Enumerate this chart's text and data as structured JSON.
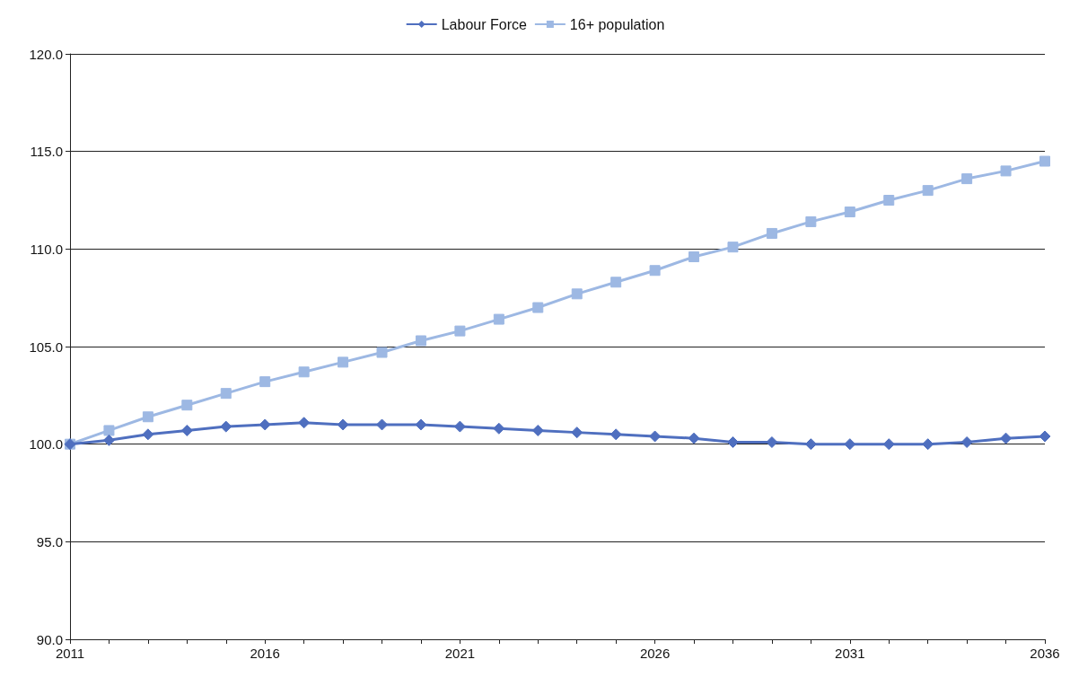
{
  "chart_data": {
    "type": "line",
    "x": [
      2011,
      2012,
      2013,
      2014,
      2015,
      2016,
      2017,
      2018,
      2019,
      2020,
      2021,
      2022,
      2023,
      2024,
      2025,
      2026,
      2027,
      2028,
      2029,
      2030,
      2031,
      2032,
      2033,
      2034,
      2035,
      2036
    ],
    "series": [
      {
        "name": "Labour Force",
        "color": "#4f6fbf",
        "marker": "diamond",
        "values": [
          100.0,
          100.2,
          100.5,
          100.7,
          100.9,
          101.0,
          101.1,
          101.0,
          101.0,
          101.0,
          100.9,
          100.8,
          100.7,
          100.6,
          100.5,
          100.4,
          100.3,
          100.1,
          100.1,
          100.0,
          100.0,
          100.0,
          100.0,
          100.1,
          100.3,
          100.4
        ]
      },
      {
        "name": "16+ population",
        "color": "#9db8e3",
        "marker": "square",
        "values": [
          100.0,
          100.7,
          101.4,
          102.0,
          102.6,
          103.2,
          103.7,
          104.2,
          104.7,
          105.3,
          105.8,
          106.4,
          107.0,
          107.7,
          108.3,
          108.9,
          109.6,
          110.1,
          110.8,
          111.4,
          111.9,
          112.5,
          113.0,
          113.6,
          114.0,
          114.5
        ]
      }
    ],
    "xlim": [
      2011,
      2036
    ],
    "xticks": [
      2011,
      {
        "value": 2012,
        "label": null
      },
      {
        "value": 2013,
        "label": null
      },
      {
        "value": 2014,
        "label": null
      },
      {
        "value": 2015,
        "label": null
      },
      2016,
      {
        "value": 2017,
        "label": null
      },
      {
        "value": 2018,
        "label": null
      },
      {
        "value": 2019,
        "label": null
      },
      {
        "value": 2020,
        "label": null
      },
      2021,
      {
        "value": 2022,
        "label": null
      },
      {
        "value": 2023,
        "label": null
      },
      {
        "value": 2024,
        "label": null
      },
      {
        "value": 2025,
        "label": null
      },
      2026,
      {
        "value": 2027,
        "label": null
      },
      {
        "value": 2028,
        "label": null
      },
      {
        "value": 2029,
        "label": null
      },
      {
        "value": 2030,
        "label": null
      },
      2031,
      {
        "value": 2032,
        "label": null
      },
      {
        "value": 2033,
        "label": null
      },
      {
        "value": 2034,
        "label": null
      },
      {
        "value": 2035,
        "label": null
      },
      2036
    ],
    "ylim": [
      90,
      120
    ],
    "yticks": [
      {
        "value": 90,
        "label": "90.0"
      },
      {
        "value": 95,
        "label": "95.0"
      },
      {
        "value": 100,
        "label": "100.0"
      },
      {
        "value": 105,
        "label": "105.0"
      },
      {
        "value": 110,
        "label": "110.0"
      },
      {
        "value": 115,
        "label": "115.0"
      },
      {
        "value": 120,
        "label": "120.0"
      }
    ],
    "grid": "y",
    "legend": "top",
    "line_style": "solid"
  }
}
